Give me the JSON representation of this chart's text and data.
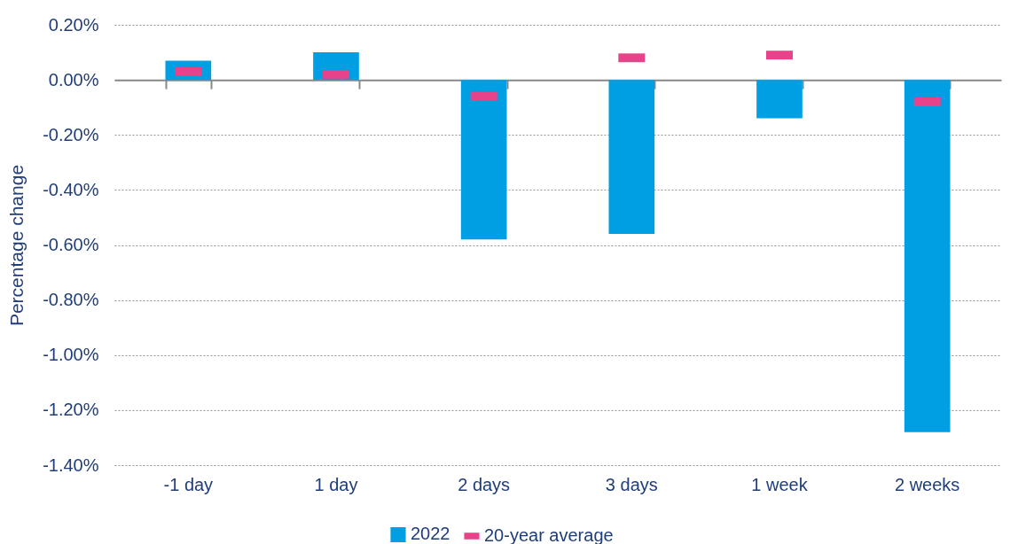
{
  "chart_data": {
    "type": "bar",
    "ylabel": "Percentage change",
    "categories": [
      "-1 day",
      "1 day",
      "2 days",
      "3 days",
      "1 week",
      "2 weeks"
    ],
    "series": [
      {
        "name": "2022",
        "color": "#009fe3",
        "values": [
          0.07,
          0.1,
          -0.58,
          -0.56,
          -0.14,
          -1.28
        ]
      },
      {
        "name": "20-year average",
        "type": "scatter",
        "color": "#e8438a",
        "values": [
          0.03,
          0.02,
          -0.06,
          0.08,
          0.09,
          -0.08
        ]
      }
    ],
    "ylim": [
      -1.4,
      0.2
    ],
    "yticks": [
      {
        "value": -1.4,
        "label": "-1.40%"
      },
      {
        "value": -1.2,
        "label": "-1.20%"
      },
      {
        "value": -1.0,
        "label": "-1.00%"
      },
      {
        "value": -0.8,
        "label": "-0.80%"
      },
      {
        "value": -0.6,
        "label": "-0.60%"
      },
      {
        "value": -0.4,
        "label": "-0.40%"
      },
      {
        "value": -0.2,
        "label": "-0.20%"
      },
      {
        "value": 0,
        "label": "0.00%"
      },
      {
        "value": 0.2,
        "label": "0.20%"
      }
    ],
    "grid": "y",
    "legend": "bottom"
  }
}
